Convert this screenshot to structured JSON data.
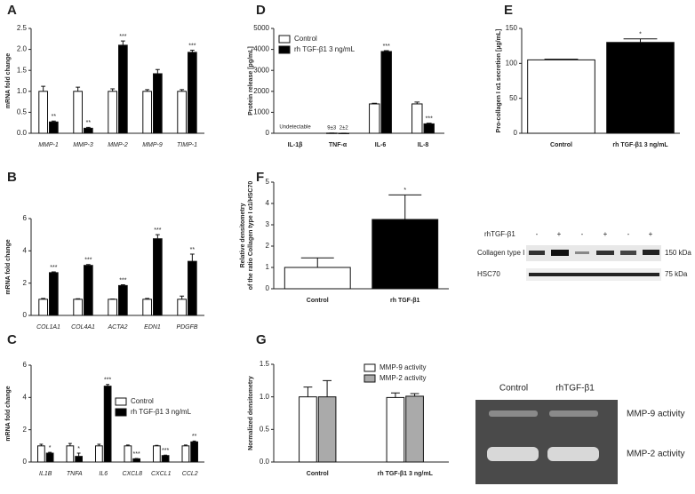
{
  "chart_data": [
    {
      "type": "bar",
      "panel": "A",
      "ylabel": [
        "mRNA fold change"
      ],
      "italic_categories": true,
      "categories": [
        "MMP-1",
        "MMP-3",
        "MMP-2",
        "MMP-9",
        "TIMP-1"
      ],
      "series": [
        {
          "color": "#ffffff",
          "values": [
            1,
            1,
            1,
            1,
            1
          ],
          "errors": [
            0.12,
            0.1,
            0.06,
            0.04,
            0.04
          ]
        },
        {
          "color": "#000000",
          "values": [
            0.27,
            0.12,
            2.1,
            1.42,
            1.93
          ],
          "errors": [
            0.02,
            0.02,
            0.1,
            0.1,
            0.05
          ],
          "significance": [
            "**",
            "**",
            "***",
            null,
            "***"
          ]
        }
      ],
      "ylim": [
        0,
        2.5
      ],
      "yticks": [
        {
          "value": 0,
          "label": "0.0"
        },
        0.5,
        {
          "value": 1,
          "label": "1.0"
        },
        1.5,
        {
          "value": 2,
          "label": "2.0"
        },
        2.5
      ]
    },
    {
      "type": "bar",
      "panel": "B",
      "ylabel": [
        "mRNA fold change"
      ],
      "italic_categories": true,
      "categories": [
        "COL1A1",
        "COL4A1",
        "ACTA2",
        "EDN1",
        "PDGFB"
      ],
      "series": [
        {
          "color": "#ffffff",
          "values": [
            1,
            1,
            1,
            1,
            1
          ],
          "errors": [
            0.05,
            0.03,
            0.02,
            0.05,
            0.2
          ]
        },
        {
          "color": "#000000",
          "values": [
            2.65,
            3.1,
            1.85,
            4.75,
            3.35
          ],
          "errors": [
            0.05,
            0.05,
            0.05,
            0.25,
            0.45
          ],
          "significance": [
            "***",
            "***",
            "***",
            "***",
            "**"
          ]
        }
      ],
      "ylim": [
        0,
        6
      ],
      "yticks": [
        0,
        2,
        4,
        6
      ]
    },
    {
      "type": "bar",
      "panel": "C",
      "ylabel": [
        "mRNA fold change"
      ],
      "italic_categories": true,
      "legend": "upper-right",
      "categories": [
        "IL1B",
        "TNFA",
        "IL6",
        "CXCL8",
        "CXCL1",
        "CCL2"
      ],
      "series": [
        {
          "name": "Control",
          "color": "#ffffff",
          "values": [
            1,
            1,
            1,
            1,
            1,
            1
          ],
          "errors": [
            0.1,
            0.15,
            0.1,
            0.05,
            0.03,
            0.05
          ]
        },
        {
          "name": "rh TGF-β1 3 ng/mL",
          "color": "#000000",
          "values": [
            0.55,
            0.35,
            4.7,
            0.2,
            0.4,
            1.25
          ],
          "errors": [
            0.05,
            0.2,
            0.1,
            0.02,
            0.03,
            0.05
          ],
          "significance": [
            "*",
            "*",
            "***",
            "***",
            "***",
            "**"
          ]
        }
      ],
      "ylim": [
        0,
        6
      ],
      "yticks": [
        0,
        2,
        4,
        6
      ]
    },
    {
      "type": "bar",
      "panel": "D",
      "ylabel": [
        "Protein release [pg/mL]"
      ],
      "legend": "upper-left",
      "categories": [
        "IL-1β",
        "TNF-α",
        "IL-6",
        "IL-8"
      ],
      "annotations": [
        "Undetectable"
      ],
      "series": [
        {
          "name": "Control",
          "color": "#ffffff",
          "values": [
            null,
            9,
            1400,
            1400
          ],
          "value_labels": [
            null,
            "9±3",
            null,
            null
          ],
          "errors": [
            null,
            3,
            30,
            90
          ]
        },
        {
          "name": "rh TGF-β1 3 ng/mL",
          "color": "#000000",
          "values": [
            null,
            2,
            3900,
            450
          ],
          "value_labels": [
            null,
            "2±2",
            null,
            null
          ],
          "errors": [
            null,
            2,
            40,
            30
          ],
          "significance": [
            null,
            null,
            "***",
            "***"
          ]
        }
      ],
      "ylim": [
        0,
        5000
      ],
      "yticks": [
        0,
        1000,
        2000,
        3000,
        4000,
        5000
      ]
    },
    {
      "type": "bar",
      "panel": "E",
      "ylabel": [
        "Pro-collagen I α1 secretion [µg/mL]"
      ],
      "categories": [
        "Control",
        "rh TGF-β1 3 ng/mL"
      ],
      "series": [
        {
          "colors": [
            "#ffffff",
            "#000000"
          ],
          "values": [
            105,
            130
          ],
          "errors": [
            1,
            5
          ],
          "significance": [
            null,
            "*"
          ]
        }
      ],
      "ylim": [
        0,
        150
      ],
      "yticks": [
        0,
        50,
        100,
        150
      ]
    },
    {
      "type": "bar",
      "panel": "F",
      "ylabel": [
        "Relative densitometry",
        "of the ratio Collagen type I α1/HSC70"
      ],
      "categories": [
        "Control",
        "rh TGF-β1"
      ],
      "series": [
        {
          "colors": [
            "#ffffff",
            "#000000"
          ],
          "values": [
            1,
            3.25
          ],
          "errors": [
            0.45,
            1.15
          ],
          "significance": [
            null,
            "*"
          ]
        }
      ],
      "ylim": [
        0,
        5
      ],
      "yticks": [
        0,
        1,
        2,
        3,
        4,
        5
      ]
    },
    {
      "type": "bar",
      "panel": "G",
      "ylabel": [
        "Normalized densitometry"
      ],
      "legend": "upper-right",
      "categories": [
        "Control",
        "rh TGF-β1 3 ng/mL"
      ],
      "series": [
        {
          "name": "MMP-9 activity",
          "color": "#ffffff",
          "values": [
            1,
            0.99
          ],
          "errors": [
            0.15,
            0.07
          ]
        },
        {
          "name": "MMP-2 activity",
          "color": "#aaaaaa",
          "values": [
            1,
            1.01
          ],
          "errors": [
            0.25,
            0.04
          ]
        }
      ],
      "ylim": [
        0,
        1.5
      ],
      "yticks": [
        {
          "value": 0,
          "label": "0.0"
        },
        0.5,
        {
          "value": 1,
          "label": "1.0"
        },
        1.5
      ]
    }
  ],
  "western_blot": {
    "treatment_label": "rhTGF-β1",
    "lanes": [
      "-",
      "+",
      "-",
      "+",
      "-",
      "+"
    ],
    "rows": [
      {
        "label": "Collagen type I α1",
        "size": "150 kDa"
      },
      {
        "label": "HSC70",
        "size": "75 kDa"
      }
    ]
  },
  "zymogram": {
    "columns": [
      "Control",
      "rhTGF-β1"
    ],
    "bands": [
      "MMP-9 activity",
      "MMP-2 activity"
    ]
  }
}
